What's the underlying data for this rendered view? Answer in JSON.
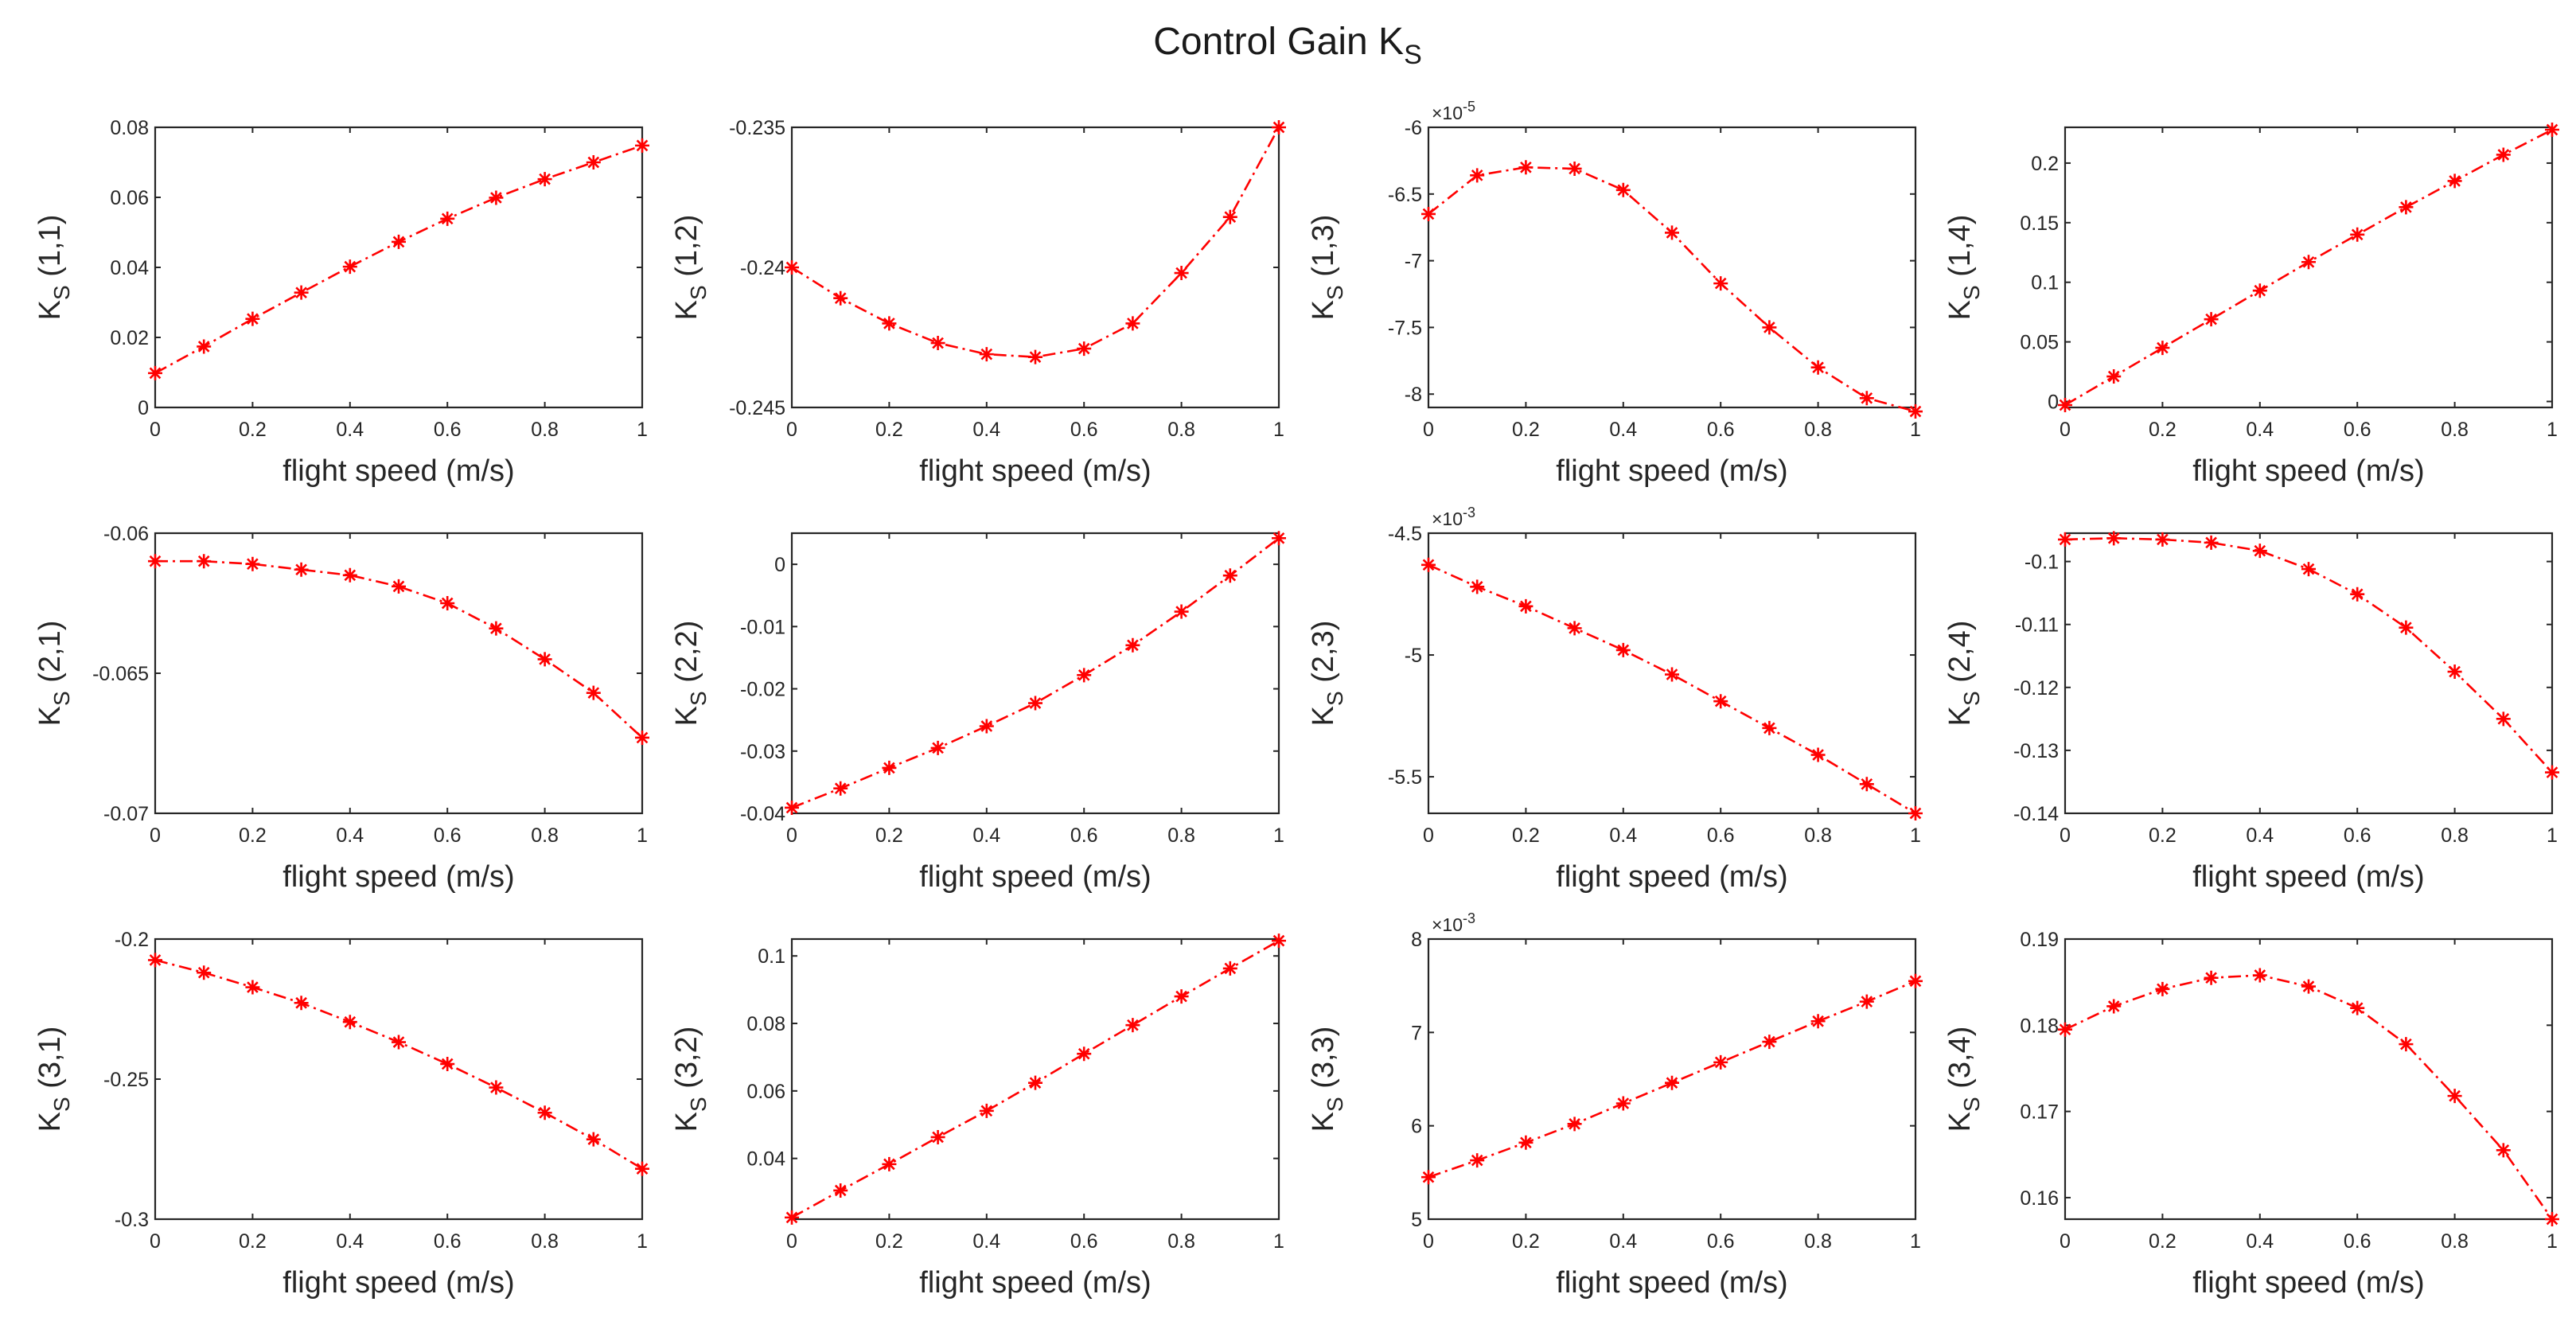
{
  "figure": {
    "title": "Control Gain K",
    "title_sub": "S"
  },
  "colors": {
    "series": "#ff0000",
    "axes": "#262626",
    "background": "#ffffff"
  },
  "chart_data": [
    {
      "type": "line",
      "title": "",
      "row": 1,
      "col": 1,
      "ylabel_main": "K",
      "ylabel_sub": "S",
      "ylabel_idx": " (1,1)",
      "xlabel": "flight speed (m/s)",
      "exponent": null,
      "xlim": [
        0,
        1
      ],
      "xticks": [
        0,
        0.2,
        0.4,
        0.6,
        0.8,
        1
      ],
      "xtick_labels": [
        "0",
        "0.2",
        "0.4",
        "0.6",
        "0.8",
        "1"
      ],
      "ylim": [
        0,
        0.08
      ],
      "yticks": [
        0,
        0.02,
        0.04,
        0.06,
        0.08
      ],
      "ytick_labels": [
        "0",
        "0.02",
        "0.04",
        "0.06",
        "0.08"
      ],
      "x": [
        0,
        0.1,
        0.2,
        0.3,
        0.4,
        0.5,
        0.6,
        0.7,
        0.8,
        0.9,
        1
      ],
      "series": [
        {
          "name": "K_S(1,1)",
          "values": [
            0.0098,
            0.0174,
            0.0253,
            0.0328,
            0.0402,
            0.0473,
            0.0539,
            0.0599,
            0.0652,
            0.07,
            0.0748
          ]
        }
      ]
    },
    {
      "type": "line",
      "title": "",
      "row": 1,
      "col": 2,
      "ylabel_main": "K",
      "ylabel_sub": "S",
      "ylabel_idx": " (1,2)",
      "xlabel": "flight speed (m/s)",
      "exponent": null,
      "xlim": [
        0,
        1
      ],
      "xticks": [
        0,
        0.2,
        0.4,
        0.6,
        0.8,
        1
      ],
      "xtick_labels": [
        "0",
        "0.2",
        "0.4",
        "0.6",
        "0.8",
        "1"
      ],
      "ylim": [
        -0.245,
        -0.235
      ],
      "yticks": [
        -0.245,
        -0.24,
        -0.235
      ],
      "ytick_labels": [
        "-0.245",
        "-0.24",
        "-0.235"
      ],
      "x": [
        0,
        0.1,
        0.2,
        0.3,
        0.4,
        0.5,
        0.6,
        0.7,
        0.8,
        0.9,
        1
      ],
      "series": [
        {
          "name": "K_S(1,2)",
          "values": [
            -0.24,
            -0.2411,
            -0.242,
            -0.2427,
            -0.2431,
            -0.2432,
            -0.2429,
            -0.242,
            -0.2402,
            -0.2382,
            -0.235
          ]
        }
      ]
    },
    {
      "type": "line",
      "title": "",
      "row": 1,
      "col": 3,
      "ylabel_main": "K",
      "ylabel_sub": "S",
      "ylabel_idx": " (1,3)",
      "xlabel": "flight speed (m/s)",
      "exponent": "-5",
      "xlim": [
        0,
        1
      ],
      "xticks": [
        0,
        0.2,
        0.4,
        0.6,
        0.8,
        1
      ],
      "xtick_labels": [
        "0",
        "0.2",
        "0.4",
        "0.6",
        "0.8",
        "1"
      ],
      "ylim": [
        -8.1,
        -6
      ],
      "yticks": [
        -8,
        -7.5,
        -7,
        -6.5,
        -6
      ],
      "ytick_labels": [
        "-8",
        "-7.5",
        "-7",
        "-6.5",
        "-6"
      ],
      "x": [
        0,
        0.1,
        0.2,
        0.3,
        0.4,
        0.5,
        0.6,
        0.7,
        0.8,
        0.9,
        1
      ],
      "series": [
        {
          "name": "K_S(1,3)",
          "values": [
            -6.65,
            -6.36,
            -6.3,
            -6.31,
            -6.47,
            -6.79,
            -7.17,
            -7.5,
            -7.8,
            -8.03,
            -8.13
          ]
        }
      ]
    },
    {
      "type": "line",
      "title": "",
      "row": 1,
      "col": 4,
      "ylabel_main": "K",
      "ylabel_sub": "S",
      "ylabel_idx": " (1,4)",
      "xlabel": "flight speed (m/s)",
      "exponent": null,
      "xlim": [
        0,
        1
      ],
      "xticks": [
        0,
        0.2,
        0.4,
        0.6,
        0.8,
        1
      ],
      "xtick_labels": [
        "0",
        "0.2",
        "0.4",
        "0.6",
        "0.8",
        "1"
      ],
      "ylim": [
        -0.005,
        0.23
      ],
      "yticks": [
        0,
        0.05,
        0.1,
        0.15,
        0.2
      ],
      "ytick_labels": [
        "0",
        "0.05",
        "0.1",
        "0.15",
        "0.2"
      ],
      "x": [
        0,
        0.1,
        0.2,
        0.3,
        0.4,
        0.5,
        0.6,
        0.7,
        0.8,
        0.9,
        1
      ],
      "series": [
        {
          "name": "K_S(1,4)",
          "values": [
            -0.003,
            0.021,
            0.045,
            0.069,
            0.093,
            0.117,
            0.14,
            0.163,
            0.185,
            0.207,
            0.228
          ]
        }
      ]
    },
    {
      "type": "line",
      "title": "",
      "row": 2,
      "col": 1,
      "ylabel_main": "K",
      "ylabel_sub": "S",
      "ylabel_idx": " (2,1)",
      "xlabel": "flight speed (m/s)",
      "exponent": null,
      "xlim": [
        0,
        1
      ],
      "xticks": [
        0,
        0.2,
        0.4,
        0.6,
        0.8,
        1
      ],
      "xtick_labels": [
        "0",
        "0.2",
        "0.4",
        "0.6",
        "0.8",
        "1"
      ],
      "ylim": [
        -0.07,
        -0.06
      ],
      "yticks": [
        -0.07,
        -0.065,
        -0.06
      ],
      "ytick_labels": [
        "-0.07",
        "-0.065",
        "-0.06"
      ],
      "x": [
        0,
        0.1,
        0.2,
        0.3,
        0.4,
        0.5,
        0.6,
        0.7,
        0.8,
        0.9,
        1
      ],
      "series": [
        {
          "name": "K_S(2,1)",
          "values": [
            -0.061,
            -0.061,
            -0.0611,
            -0.0613,
            -0.0615,
            -0.0619,
            -0.0625,
            -0.0634,
            -0.0645,
            -0.0657,
            -0.0673
          ]
        }
      ]
    },
    {
      "type": "line",
      "title": "",
      "row": 2,
      "col": 2,
      "ylabel_main": "K",
      "ylabel_sub": "S",
      "ylabel_idx": " (2,2)",
      "xlabel": "flight speed (m/s)",
      "exponent": null,
      "xlim": [
        0,
        1
      ],
      "xticks": [
        0,
        0.2,
        0.4,
        0.6,
        0.8,
        1
      ],
      "xtick_labels": [
        "0",
        "0.2",
        "0.4",
        "0.6",
        "0.8",
        "1"
      ],
      "ylim": [
        -0.04,
        0.005
      ],
      "yticks": [
        -0.04,
        -0.03,
        -0.02,
        -0.01,
        0
      ],
      "ytick_labels": [
        "-0.04",
        "-0.03",
        "-0.02",
        "-0.01",
        "0"
      ],
      "x": [
        0,
        0.1,
        0.2,
        0.3,
        0.4,
        0.5,
        0.6,
        0.7,
        0.8,
        0.9,
        1
      ],
      "series": [
        {
          "name": "K_S(2,2)",
          "values": [
            -0.0391,
            -0.036,
            -0.0327,
            -0.0295,
            -0.026,
            -0.0223,
            -0.0178,
            -0.013,
            -0.0076,
            -0.0018,
            0.0042
          ]
        }
      ]
    },
    {
      "type": "line",
      "title": "",
      "row": 2,
      "col": 3,
      "ylabel_main": "K",
      "ylabel_sub": "S",
      "ylabel_idx": " (2,3)",
      "xlabel": "flight speed (m/s)",
      "exponent": "-3",
      "xlim": [
        0,
        1
      ],
      "xticks": [
        0,
        0.2,
        0.4,
        0.6,
        0.8,
        1
      ],
      "xtick_labels": [
        "0",
        "0.2",
        "0.4",
        "0.6",
        "0.8",
        "1"
      ],
      "ylim": [
        -5.65,
        -4.5
      ],
      "yticks": [
        -5.5,
        -5,
        -4.5
      ],
      "ytick_labels": [
        "-5.5",
        "-5",
        "-4.5"
      ],
      "x": [
        0,
        0.1,
        0.2,
        0.3,
        0.4,
        0.5,
        0.6,
        0.7,
        0.8,
        0.9,
        1
      ],
      "series": [
        {
          "name": "K_S(2,3)",
          "values": [
            -4.63,
            -4.72,
            -4.8,
            -4.89,
            -4.98,
            -5.08,
            -5.19,
            -5.3,
            -5.41,
            -5.53,
            -5.65
          ]
        }
      ]
    },
    {
      "type": "line",
      "title": "",
      "row": 2,
      "col": 4,
      "ylabel_main": "K",
      "ylabel_sub": "S",
      "ylabel_idx": " (2,4)",
      "xlabel": "flight speed (m/s)",
      "exponent": null,
      "xlim": [
        0,
        1
      ],
      "xticks": [
        0,
        0.2,
        0.4,
        0.6,
        0.8,
        1
      ],
      "xtick_labels": [
        "0",
        "0.2",
        "0.4",
        "0.6",
        "0.8",
        "1"
      ],
      "ylim": [
        -0.14,
        -0.0955
      ],
      "yticks": [
        -0.14,
        -0.13,
        -0.12,
        -0.11,
        -0.1
      ],
      "ytick_labels": [
        "-0.14",
        "-0.13",
        "-0.12",
        "-0.11",
        "-0.1"
      ],
      "x": [
        0,
        0.1,
        0.2,
        0.3,
        0.4,
        0.5,
        0.6,
        0.7,
        0.8,
        0.9,
        1
      ],
      "series": [
        {
          "name": "K_S(2,4)",
          "values": [
            -0.0965,
            -0.0963,
            -0.0965,
            -0.097,
            -0.0983,
            -0.1012,
            -0.1052,
            -0.1105,
            -0.1175,
            -0.125,
            -0.1335
          ]
        }
      ]
    },
    {
      "type": "line",
      "title": "",
      "row": 3,
      "col": 1,
      "ylabel_main": "K",
      "ylabel_sub": "S",
      "ylabel_idx": " (3,1)",
      "xlabel": "flight speed (m/s)",
      "exponent": null,
      "xlim": [
        0,
        1
      ],
      "xticks": [
        0,
        0.2,
        0.4,
        0.6,
        0.8,
        1
      ],
      "xtick_labels": [
        "0",
        "0.2",
        "0.4",
        "0.6",
        "0.8",
        "1"
      ],
      "ylim": [
        -0.3,
        -0.2
      ],
      "yticks": [
        -0.3,
        -0.25,
        -0.2
      ],
      "ytick_labels": [
        "-0.3",
        "-0.25",
        "-0.2"
      ],
      "x": [
        0,
        0.1,
        0.2,
        0.3,
        0.4,
        0.5,
        0.6,
        0.7,
        0.8,
        0.9,
        1
      ],
      "series": [
        {
          "name": "K_S(3,1)",
          "values": [
            -0.2075,
            -0.212,
            -0.2172,
            -0.2228,
            -0.2296,
            -0.2368,
            -0.2446,
            -0.253,
            -0.262,
            -0.2715,
            -0.282
          ]
        }
      ]
    },
    {
      "type": "line",
      "title": "",
      "row": 3,
      "col": 2,
      "ylabel_main": "K",
      "ylabel_sub": "S",
      "ylabel_idx": " (3,2)",
      "xlabel": "flight speed (m/s)",
      "exponent": null,
      "xlim": [
        0,
        1
      ],
      "xticks": [
        0,
        0.2,
        0.4,
        0.6,
        0.8,
        1
      ],
      "xtick_labels": [
        "0",
        "0.2",
        "0.4",
        "0.6",
        "0.8",
        "1"
      ],
      "ylim": [
        0.022,
        0.105
      ],
      "yticks": [
        0.04,
        0.06,
        0.08,
        0.1
      ],
      "ytick_labels": [
        "0.04",
        "0.06",
        "0.08",
        "0.1"
      ],
      "x": [
        0,
        0.1,
        0.2,
        0.3,
        0.4,
        0.5,
        0.6,
        0.7,
        0.8,
        0.9,
        1
      ],
      "series": [
        {
          "name": "K_S(3,2)",
          "values": [
            0.0225,
            0.0305,
            0.0383,
            0.0463,
            0.0541,
            0.0624,
            0.071,
            0.0795,
            0.088,
            0.0963,
            0.1045
          ]
        }
      ]
    },
    {
      "type": "line",
      "title": "",
      "row": 3,
      "col": 3,
      "ylabel_main": "K",
      "ylabel_sub": "S",
      "ylabel_idx": " (3,3)",
      "xlabel": "flight speed (m/s)",
      "exponent": "-3",
      "xlim": [
        0,
        1
      ],
      "xticks": [
        0,
        0.2,
        0.4,
        0.6,
        0.8,
        1
      ],
      "xtick_labels": [
        "0",
        "0.2",
        "0.4",
        "0.6",
        "0.8",
        "1"
      ],
      "ylim": [
        5,
        8
      ],
      "yticks": [
        5,
        6,
        7,
        8
      ],
      "ytick_labels": [
        "5",
        "6",
        "7",
        "8"
      ],
      "x": [
        0,
        0.1,
        0.2,
        0.3,
        0.4,
        0.5,
        0.6,
        0.7,
        0.8,
        0.9,
        1
      ],
      "series": [
        {
          "name": "K_S(3,3)",
          "values": [
            5.45,
            5.63,
            5.82,
            6.02,
            6.24,
            6.46,
            6.68,
            6.9,
            7.12,
            7.33,
            7.55
          ]
        }
      ]
    },
    {
      "type": "line",
      "title": "",
      "row": 3,
      "col": 4,
      "ylabel_main": "K",
      "ylabel_sub": "S",
      "ylabel_idx": " (3,4)",
      "xlabel": "flight speed (m/s)",
      "exponent": null,
      "xlim": [
        0,
        1
      ],
      "xticks": [
        0,
        0.2,
        0.4,
        0.6,
        0.8,
        1
      ],
      "xtick_labels": [
        "0",
        "0.2",
        "0.4",
        "0.6",
        "0.8",
        "1"
      ],
      "ylim": [
        0.1575,
        0.19
      ],
      "yticks": [
        0.16,
        0.17,
        0.18,
        0.19
      ],
      "ytick_labels": [
        "0.16",
        "0.17",
        "0.18",
        "0.19"
      ],
      "x": [
        0,
        0.1,
        0.2,
        0.3,
        0.4,
        0.5,
        0.6,
        0.7,
        0.8,
        0.9,
        1
      ],
      "series": [
        {
          "name": "K_S(3,4)",
          "values": [
            0.1795,
            0.1822,
            0.1842,
            0.1855,
            0.1858,
            0.1845,
            0.182,
            0.1778,
            0.1718,
            0.1655,
            0.1575
          ]
        }
      ]
    }
  ]
}
